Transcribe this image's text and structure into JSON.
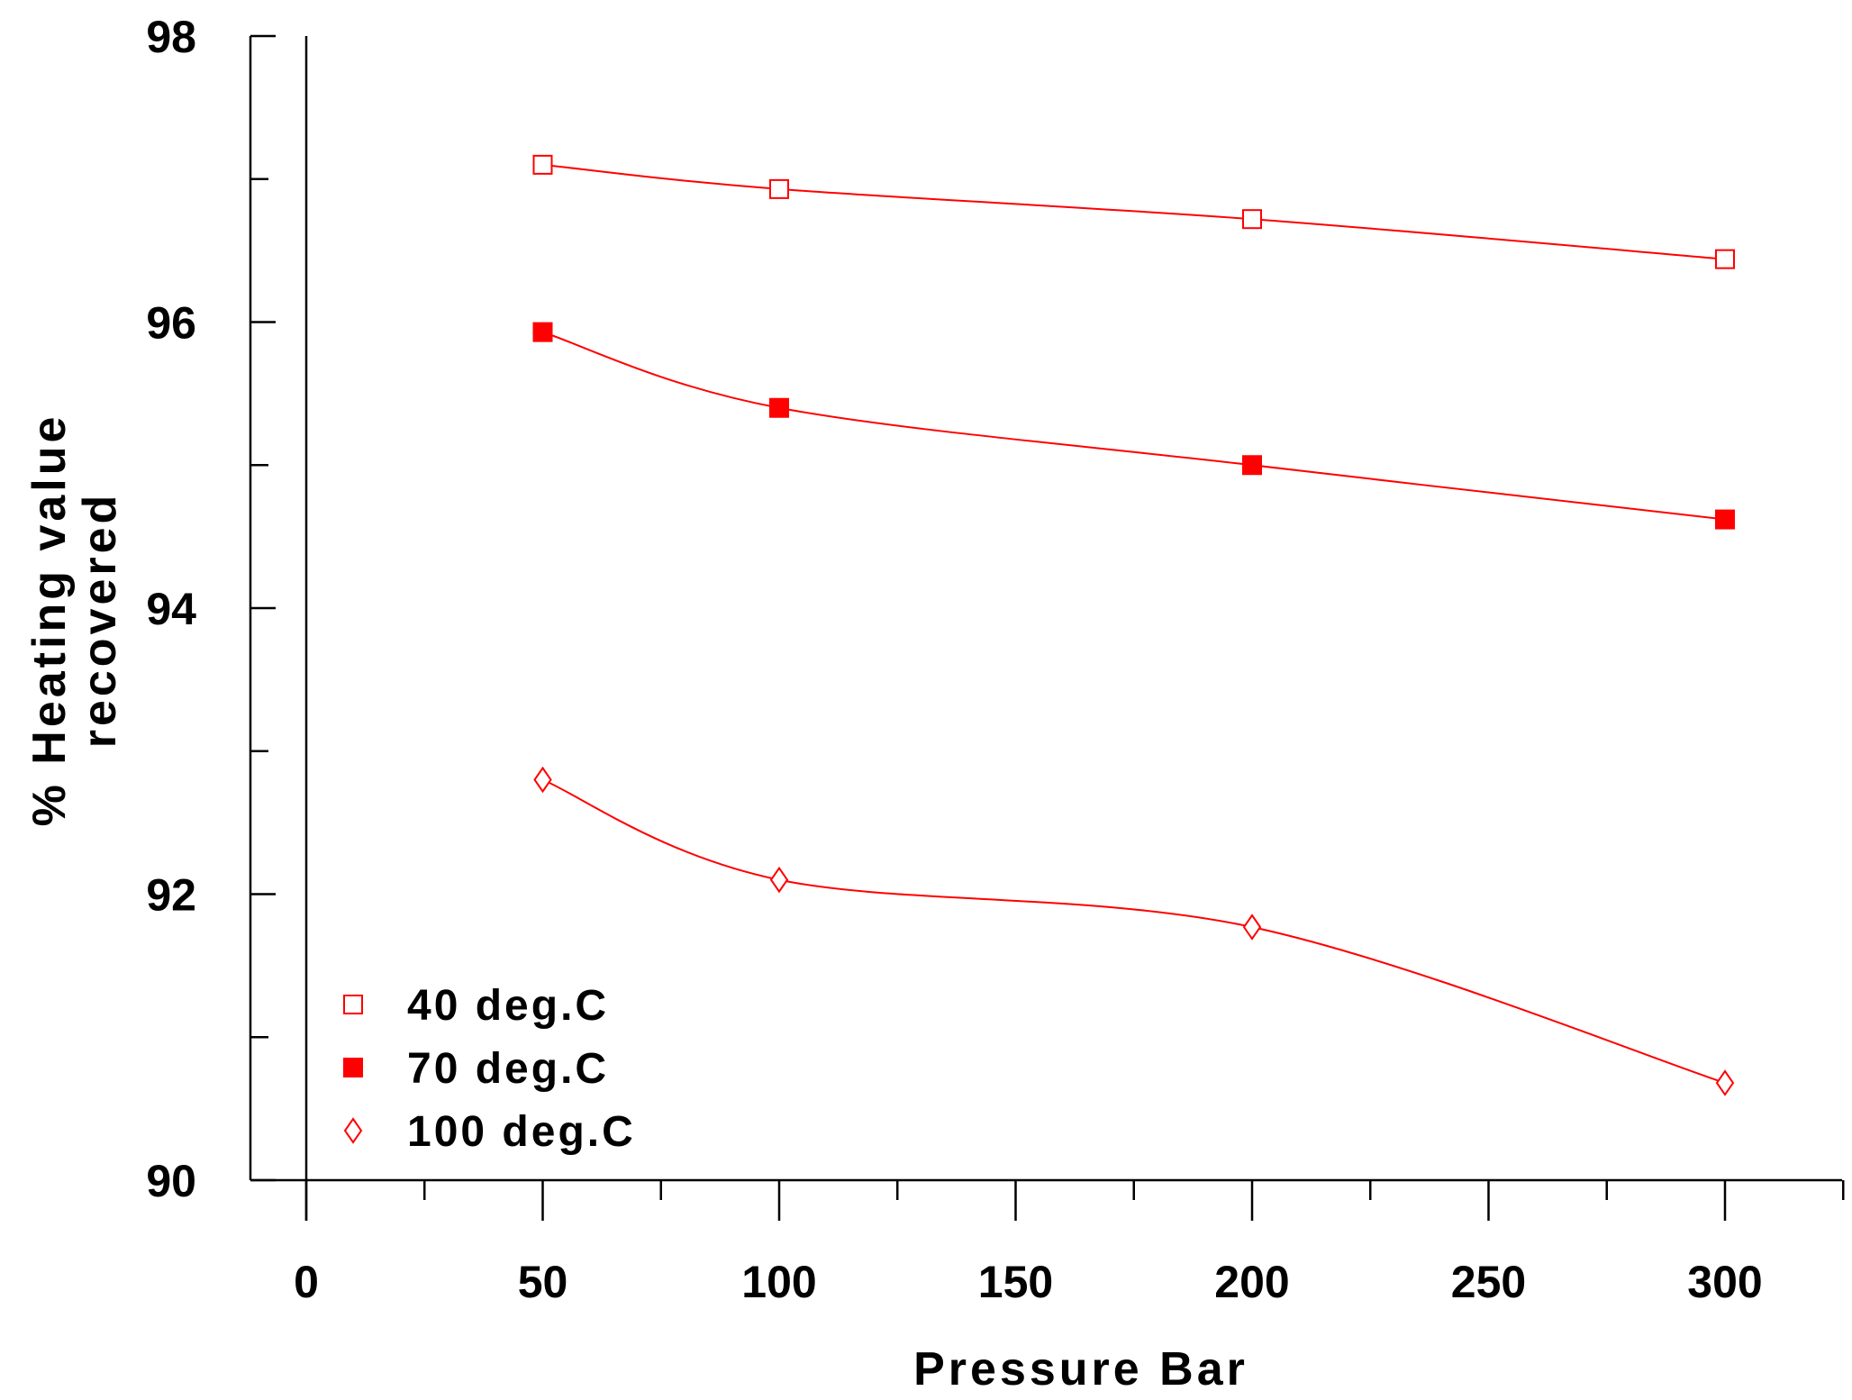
{
  "chart_data": {
    "type": "line",
    "title": "",
    "xlabel": "Pressure Bar",
    "ylabel_lines": [
      "% Heating value",
      "recovered"
    ],
    "xlim": [
      0,
      325
    ],
    "ylim": [
      90,
      98
    ],
    "x_major_ticks": [
      0,
      50,
      100,
      150,
      200,
      250,
      300
    ],
    "x_minor_ticks": [
      25,
      75,
      125,
      175,
      225,
      275,
      325
    ],
    "y_major_ticks": [
      90,
      92,
      94,
      96,
      98
    ],
    "y_minor_ticks": [
      91,
      93,
      95,
      97
    ],
    "x_tick_labels": [
      "0",
      "50",
      "100",
      "150",
      "200",
      "250",
      "300"
    ],
    "y_tick_labels": [
      "90",
      "92",
      "94",
      "96",
      "98"
    ],
    "grid": false,
    "legend_position": "bottom-left",
    "color": "#ff0000",
    "series": [
      {
        "name": "40 deg.C",
        "marker": "square-open",
        "x": [
          50,
          100,
          200,
          300
        ],
        "y": [
          97.1,
          96.93,
          96.72,
          96.44
        ]
      },
      {
        "name": "70 deg.C",
        "marker": "square-filled",
        "x": [
          50,
          100,
          200,
          300
        ],
        "y": [
          95.93,
          95.4,
          95.0,
          94.62
        ]
      },
      {
        "name": "100 deg.C",
        "marker": "diamond-open",
        "x": [
          50,
          100,
          200,
          300
        ],
        "y": [
          92.8,
          92.1,
          91.77,
          90.68
        ]
      }
    ]
  }
}
